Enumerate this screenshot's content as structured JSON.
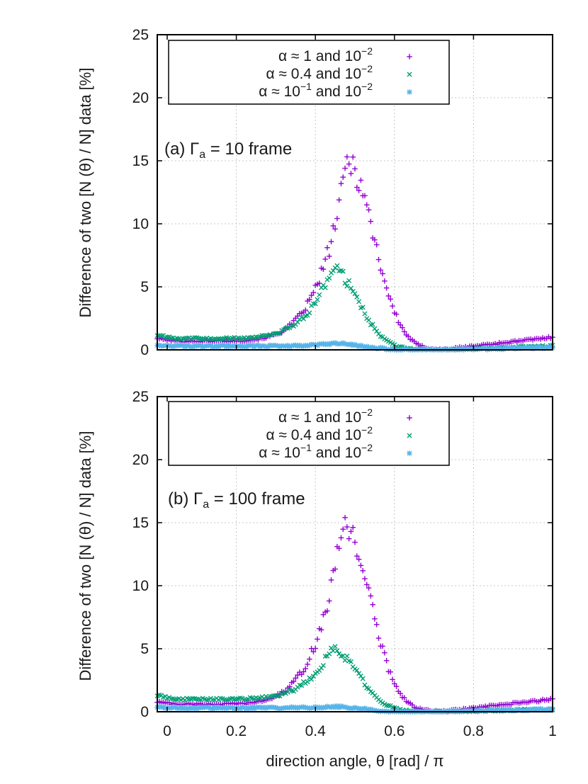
{
  "chart_data": [
    {
      "type": "scatter",
      "panel_label": "(a) Γ",
      "panel_label_sub": "a",
      "panel_label_rest": " = 10 frame",
      "xlabel": "direction angle, θ [rad] / π",
      "ylabel": "Difference of two [N (θ) / N] data [%]",
      "xlim": [
        0,
        1
      ],
      "ylim": [
        0,
        25
      ],
      "xticks": [
        "0",
        "0.2",
        "0.4",
        "0.6",
        "0.8",
        "1"
      ],
      "yticks": [
        "0",
        "5",
        "10",
        "15",
        "20",
        "25"
      ],
      "grid": true,
      "legend_position": "top",
      "series": [
        {
          "name": "α ≈ 1 and 10",
          "exponent": "−2",
          "marker": "+",
          "color": "#9400d3",
          "peak_x": 0.48,
          "peak_y": 15,
          "left_base": 0.7,
          "far_y": 1.0
        },
        {
          "name": "α ≈ 0.4 and 10",
          "exponent": "−2",
          "marker": "x",
          "color": "#009e73",
          "peak_x": 0.44,
          "peak_y": 6.5,
          "left_base": 0.9,
          "far_y": 0.3
        },
        {
          "name": "α ≈ 10",
          "exponent": "−1",
          "name_suffix": " and 10",
          "suffix_exponent": "−2",
          "marker": "*",
          "color": "#56b4e9",
          "peak_x": 0.45,
          "peak_y": 0.5,
          "left_base": 0.3,
          "far_y": 0.2
        }
      ]
    },
    {
      "type": "scatter",
      "panel_label": "(b) Γ",
      "panel_label_sub": "a",
      "panel_label_rest": " = 100 frame",
      "xlabel": "direction angle, θ [rad] / π",
      "ylabel": "Difference of two [N (θ) / N] data [%]",
      "xlim": [
        0,
        1
      ],
      "ylim": [
        0,
        25
      ],
      "xticks": [
        "0",
        "0.2",
        "0.4",
        "0.6",
        "0.8",
        "1"
      ],
      "yticks": [
        "0",
        "5",
        "10",
        "15",
        "20",
        "25"
      ],
      "grid": true,
      "legend_position": "top",
      "series": [
        {
          "name": "α ≈ 1 and 10",
          "exponent": "−2",
          "marker": "+",
          "color": "#9400d3",
          "peak_x": 0.47,
          "peak_y": 15,
          "left_base": 0.6,
          "far_y": 1.0
        },
        {
          "name": "α ≈ 0.4 and 10",
          "exponent": "−2",
          "marker": "x",
          "color": "#009e73",
          "peak_x": 0.44,
          "peak_y": 5,
          "left_base": 1.0,
          "far_y": 0.2
        },
        {
          "name": "α ≈ 10",
          "exponent": "−1",
          "name_suffix": " and 10",
          "suffix_exponent": "−2",
          "marker": "*",
          "color": "#56b4e9",
          "peak_x": 0.45,
          "peak_y": 0.4,
          "left_base": 0.3,
          "far_y": 0.2
        }
      ]
    }
  ]
}
